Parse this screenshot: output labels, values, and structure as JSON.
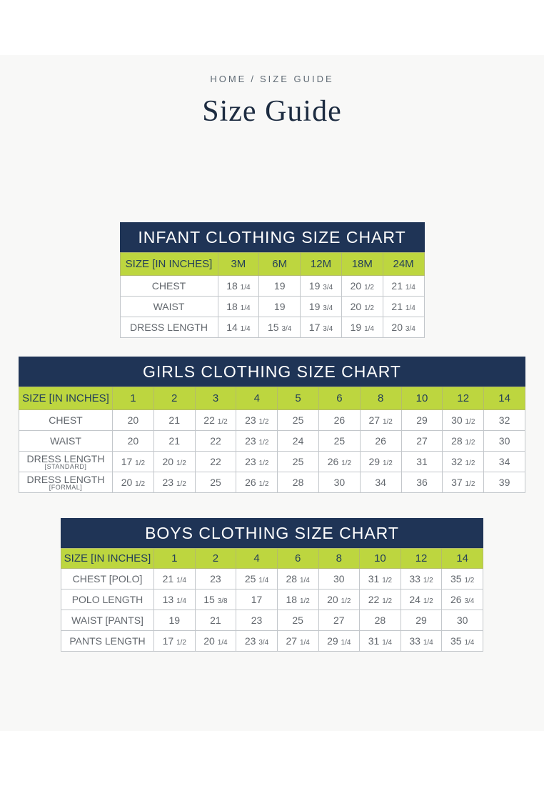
{
  "breadcrumb": {
    "home": "HOME",
    "separator": "/",
    "current": "SIZE GUIDE"
  },
  "page_title": "Size Guide",
  "colors": {
    "navy": "#1f3456",
    "green": "#bdd63f",
    "panel_background": "#f8f8f7",
    "cell_text": "#63686e",
    "title_text": "#1d2c41"
  },
  "tables": [
    {
      "title": "INFANT CLOTHING SIZE CHART",
      "size_label": "SIZE [IN INCHES]",
      "sizes": [
        "3M",
        "6M",
        "12M",
        "18M",
        "24M"
      ],
      "rows": [
        {
          "label": "CHEST",
          "values": [
            "18 1/4",
            "19",
            "19 3/4",
            "20 1/2",
            "21 1/4"
          ]
        },
        {
          "label": "WAIST",
          "values": [
            "18 1/4",
            "19",
            "19 3/4",
            "20 1/2",
            "21 1/4"
          ]
        },
        {
          "label": "DRESS LENGTH",
          "values": [
            "14 1/4",
            "15 3/4",
            "17 3/4",
            "19 1/4",
            "20 3/4"
          ]
        }
      ]
    },
    {
      "title": "GIRLS CLOTHING SIZE CHART",
      "size_label": "SIZE [IN INCHES]",
      "sizes": [
        "1",
        "2",
        "3",
        "4",
        "5",
        "6",
        "8",
        "10",
        "12",
        "14"
      ],
      "rows": [
        {
          "label": "CHEST",
          "values": [
            "20",
            "21",
            "22 1/2",
            "23 1/2",
            "25",
            "26",
            "27 1/2",
            "29",
            "30 1/2",
            "32"
          ]
        },
        {
          "label": "WAIST",
          "values": [
            "20",
            "21",
            "22",
            "23 1/2",
            "24",
            "25",
            "26",
            "27",
            "28 1/2",
            "30"
          ]
        },
        {
          "label": "DRESS LENGTH",
          "sublabel": "[STANDARD]",
          "values": [
            "17 1/2",
            "20 1/2",
            "22",
            "23 1/2",
            "25",
            "26 1/2",
            "29 1/2",
            "31",
            "32 1/2",
            "34"
          ]
        },
        {
          "label": "DRESS LENGTH",
          "sublabel": "[FORMAL]",
          "values": [
            "20 1/2",
            "23 1/2",
            "25",
            "26 1/2",
            "28",
            "30",
            "34",
            "36",
            "37 1/2",
            "39"
          ]
        }
      ]
    },
    {
      "title": "BOYS CLOTHING SIZE CHART",
      "size_label": "SIZE [IN INCHES]",
      "sizes": [
        "1",
        "2",
        "4",
        "6",
        "8",
        "10",
        "12",
        "14"
      ],
      "rows": [
        {
          "label": "CHEST [POLO]",
          "values": [
            "21 1/4",
            "23",
            "25 1/4",
            "28 1/4",
            "30",
            "31 1/2",
            "33 1/2",
            "35 1/2"
          ]
        },
        {
          "label": "POLO LENGTH",
          "values": [
            "13 1/4",
            "15 3/8",
            "17",
            "18 1/2",
            "20 1/2",
            "22 1/2",
            "24 1/2",
            "26 3/4"
          ]
        },
        {
          "label": "WAIST [PANTS]",
          "values": [
            "19",
            "21",
            "23",
            "25",
            "27",
            "28",
            "29",
            "30"
          ]
        },
        {
          "label": "PANTS LENGTH",
          "values": [
            "17 1/2",
            "20 1/4",
            "23 3/4",
            "27 1/4",
            "29 1/4",
            "31 1/4",
            "33 1/4",
            "35 1/4"
          ]
        }
      ]
    }
  ]
}
